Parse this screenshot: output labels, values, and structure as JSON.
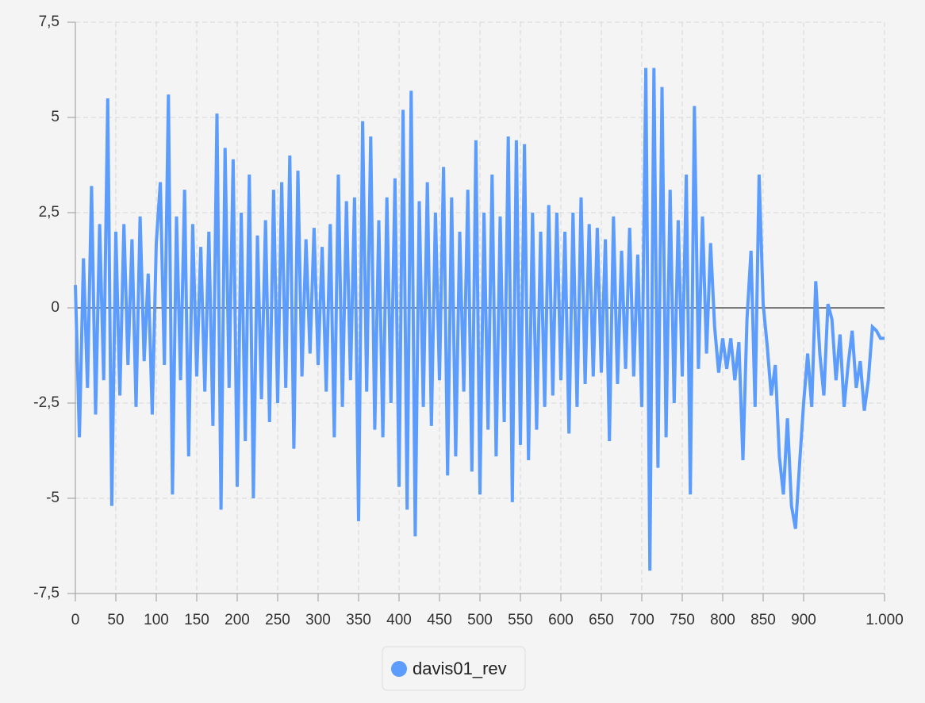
{
  "chart_data": {
    "type": "line",
    "series": [
      {
        "name": "davis01_rev",
        "color": "#5b9cfc",
        "x": [
          0,
          5,
          10,
          15,
          20,
          25,
          30,
          35,
          40,
          45,
          50,
          55,
          60,
          65,
          70,
          75,
          80,
          85,
          90,
          95,
          100,
          105,
          110,
          115,
          120,
          125,
          130,
          135,
          140,
          145,
          150,
          155,
          160,
          165,
          170,
          175,
          180,
          185,
          190,
          195,
          200,
          205,
          210,
          215,
          220,
          225,
          230,
          235,
          240,
          245,
          250,
          255,
          260,
          265,
          270,
          275,
          280,
          285,
          290,
          295,
          300,
          305,
          310,
          315,
          320,
          325,
          330,
          335,
          340,
          345,
          350,
          355,
          360,
          365,
          370,
          375,
          380,
          385,
          390,
          395,
          400,
          405,
          410,
          415,
          420,
          425,
          430,
          435,
          440,
          445,
          450,
          455,
          460,
          465,
          470,
          475,
          480,
          485,
          490,
          495,
          500,
          505,
          510,
          515,
          520,
          525,
          530,
          535,
          540,
          545,
          550,
          555,
          560,
          565,
          570,
          575,
          580,
          585,
          590,
          595,
          600,
          605,
          610,
          615,
          620,
          625,
          630,
          635,
          640,
          645,
          650,
          655,
          660,
          665,
          670,
          675,
          680,
          685,
          690,
          695,
          700,
          705,
          710,
          715,
          720,
          725,
          730,
          735,
          740,
          745,
          750,
          755,
          760,
          765,
          770,
          775,
          780,
          785,
          790,
          795,
          800,
          805,
          810,
          815,
          820,
          825,
          830,
          835,
          840,
          845,
          850,
          855,
          860,
          865,
          870,
          875,
          880,
          885,
          890,
          895,
          900,
          905,
          910,
          915,
          920,
          925,
          930,
          935,
          940,
          945,
          950,
          955,
          960,
          965,
          970,
          975,
          980,
          985,
          990,
          995,
          1000
        ],
        "values": [
          0.6,
          -3.4,
          1.3,
          -2.1,
          3.2,
          -2.8,
          2.2,
          -1.9,
          5.5,
          -5.2,
          2.0,
          -2.3,
          2.2,
          -1.5,
          1.8,
          -2.6,
          2.4,
          -1.4,
          0.9,
          -2.8,
          1.7,
          3.3,
          -1.5,
          5.6,
          -4.9,
          2.4,
          -1.9,
          3.1,
          -3.9,
          2.2,
          -1.8,
          1.6,
          -2.2,
          2.0,
          -3.1,
          5.1,
          -5.3,
          4.2,
          -2.1,
          3.9,
          -4.7,
          2.5,
          -3.5,
          3.5,
          -5.0,
          1.9,
          -2.4,
          2.3,
          -3.0,
          3.1,
          -2.5,
          3.3,
          -2.1,
          4.0,
          -3.7,
          3.6,
          -1.8,
          1.8,
          -1.2,
          2.1,
          -1.5,
          1.6,
          -2.2,
          2.2,
          -3.4,
          3.5,
          -2.6,
          2.8,
          -1.9,
          2.9,
          -5.6,
          4.9,
          -2.2,
          4.5,
          -3.2,
          2.3,
          -3.4,
          2.9,
          -2.5,
          3.4,
          -4.7,
          5.2,
          -5.3,
          5.7,
          -6.0,
          2.8,
          -2.6,
          3.3,
          -3.1,
          2.5,
          -1.9,
          3.7,
          -4.4,
          2.9,
          -3.9,
          2.0,
          -2.2,
          3.1,
          -4.3,
          4.4,
          -4.9,
          2.5,
          -3.2,
          3.5,
          -3.9,
          2.4,
          -3.0,
          4.5,
          -5.1,
          4.4,
          -3.6,
          4.3,
          -4.0,
          2.5,
          -3.2,
          2.0,
          -2.6,
          2.7,
          -2.3,
          2.5,
          -1.9,
          2.0,
          -3.3,
          2.5,
          -2.6,
          2.9,
          -2.0,
          2.2,
          -1.8,
          2.1,
          -1.7,
          1.8,
          -3.5,
          2.4,
          -2.0,
          1.5,
          -1.6,
          2.1,
          -1.8,
          1.4,
          -2.6,
          6.3,
          -6.9,
          6.3,
          -4.2,
          5.8,
          -3.4,
          3.1,
          -2.5,
          2.3,
          -1.8,
          3.5,
          -4.9,
          5.3,
          -1.6,
          2.4,
          -1.2,
          1.7,
          -0.5,
          -1.7,
          -0.8,
          -1.6,
          -0.8,
          -1.9,
          -0.9,
          -4.0,
          -0.3,
          1.5,
          -2.6,
          3.5,
          0.1,
          -1.0,
          -2.3,
          -1.5,
          -3.9,
          -4.9,
          -2.9,
          -5.2,
          -5.8,
          -4.1,
          -2.5,
          -1.2,
          -2.6,
          0.7,
          -1.2,
          -2.3,
          0.1,
          -0.3,
          -1.9,
          -0.7,
          -2.6,
          -1.5,
          -0.6,
          -2.1,
          -1.4,
          -2.7,
          -1.9,
          -0.5,
          -0.6,
          -0.8,
          -0.8
        ]
      }
    ],
    "xlim": [
      0,
      1000
    ],
    "xticks": [
      0,
      50,
      100,
      150,
      200,
      250,
      300,
      350,
      400,
      450,
      500,
      550,
      600,
      650,
      700,
      750,
      800,
      850,
      900,
      {
        "value": 1000,
        "label": "1.000"
      }
    ],
    "ylim": [
      -7.5,
      7.5
    ],
    "yticks": [
      {
        "value": -7.5,
        "label": "-7,5"
      },
      -5,
      {
        "value": -2.5,
        "label": "-2,5"
      },
      0,
      {
        "value": 2.5,
        "label": "2,5"
      },
      5,
      {
        "value": 7.5,
        "label": "7,5"
      }
    ],
    "grid": true
  }
}
